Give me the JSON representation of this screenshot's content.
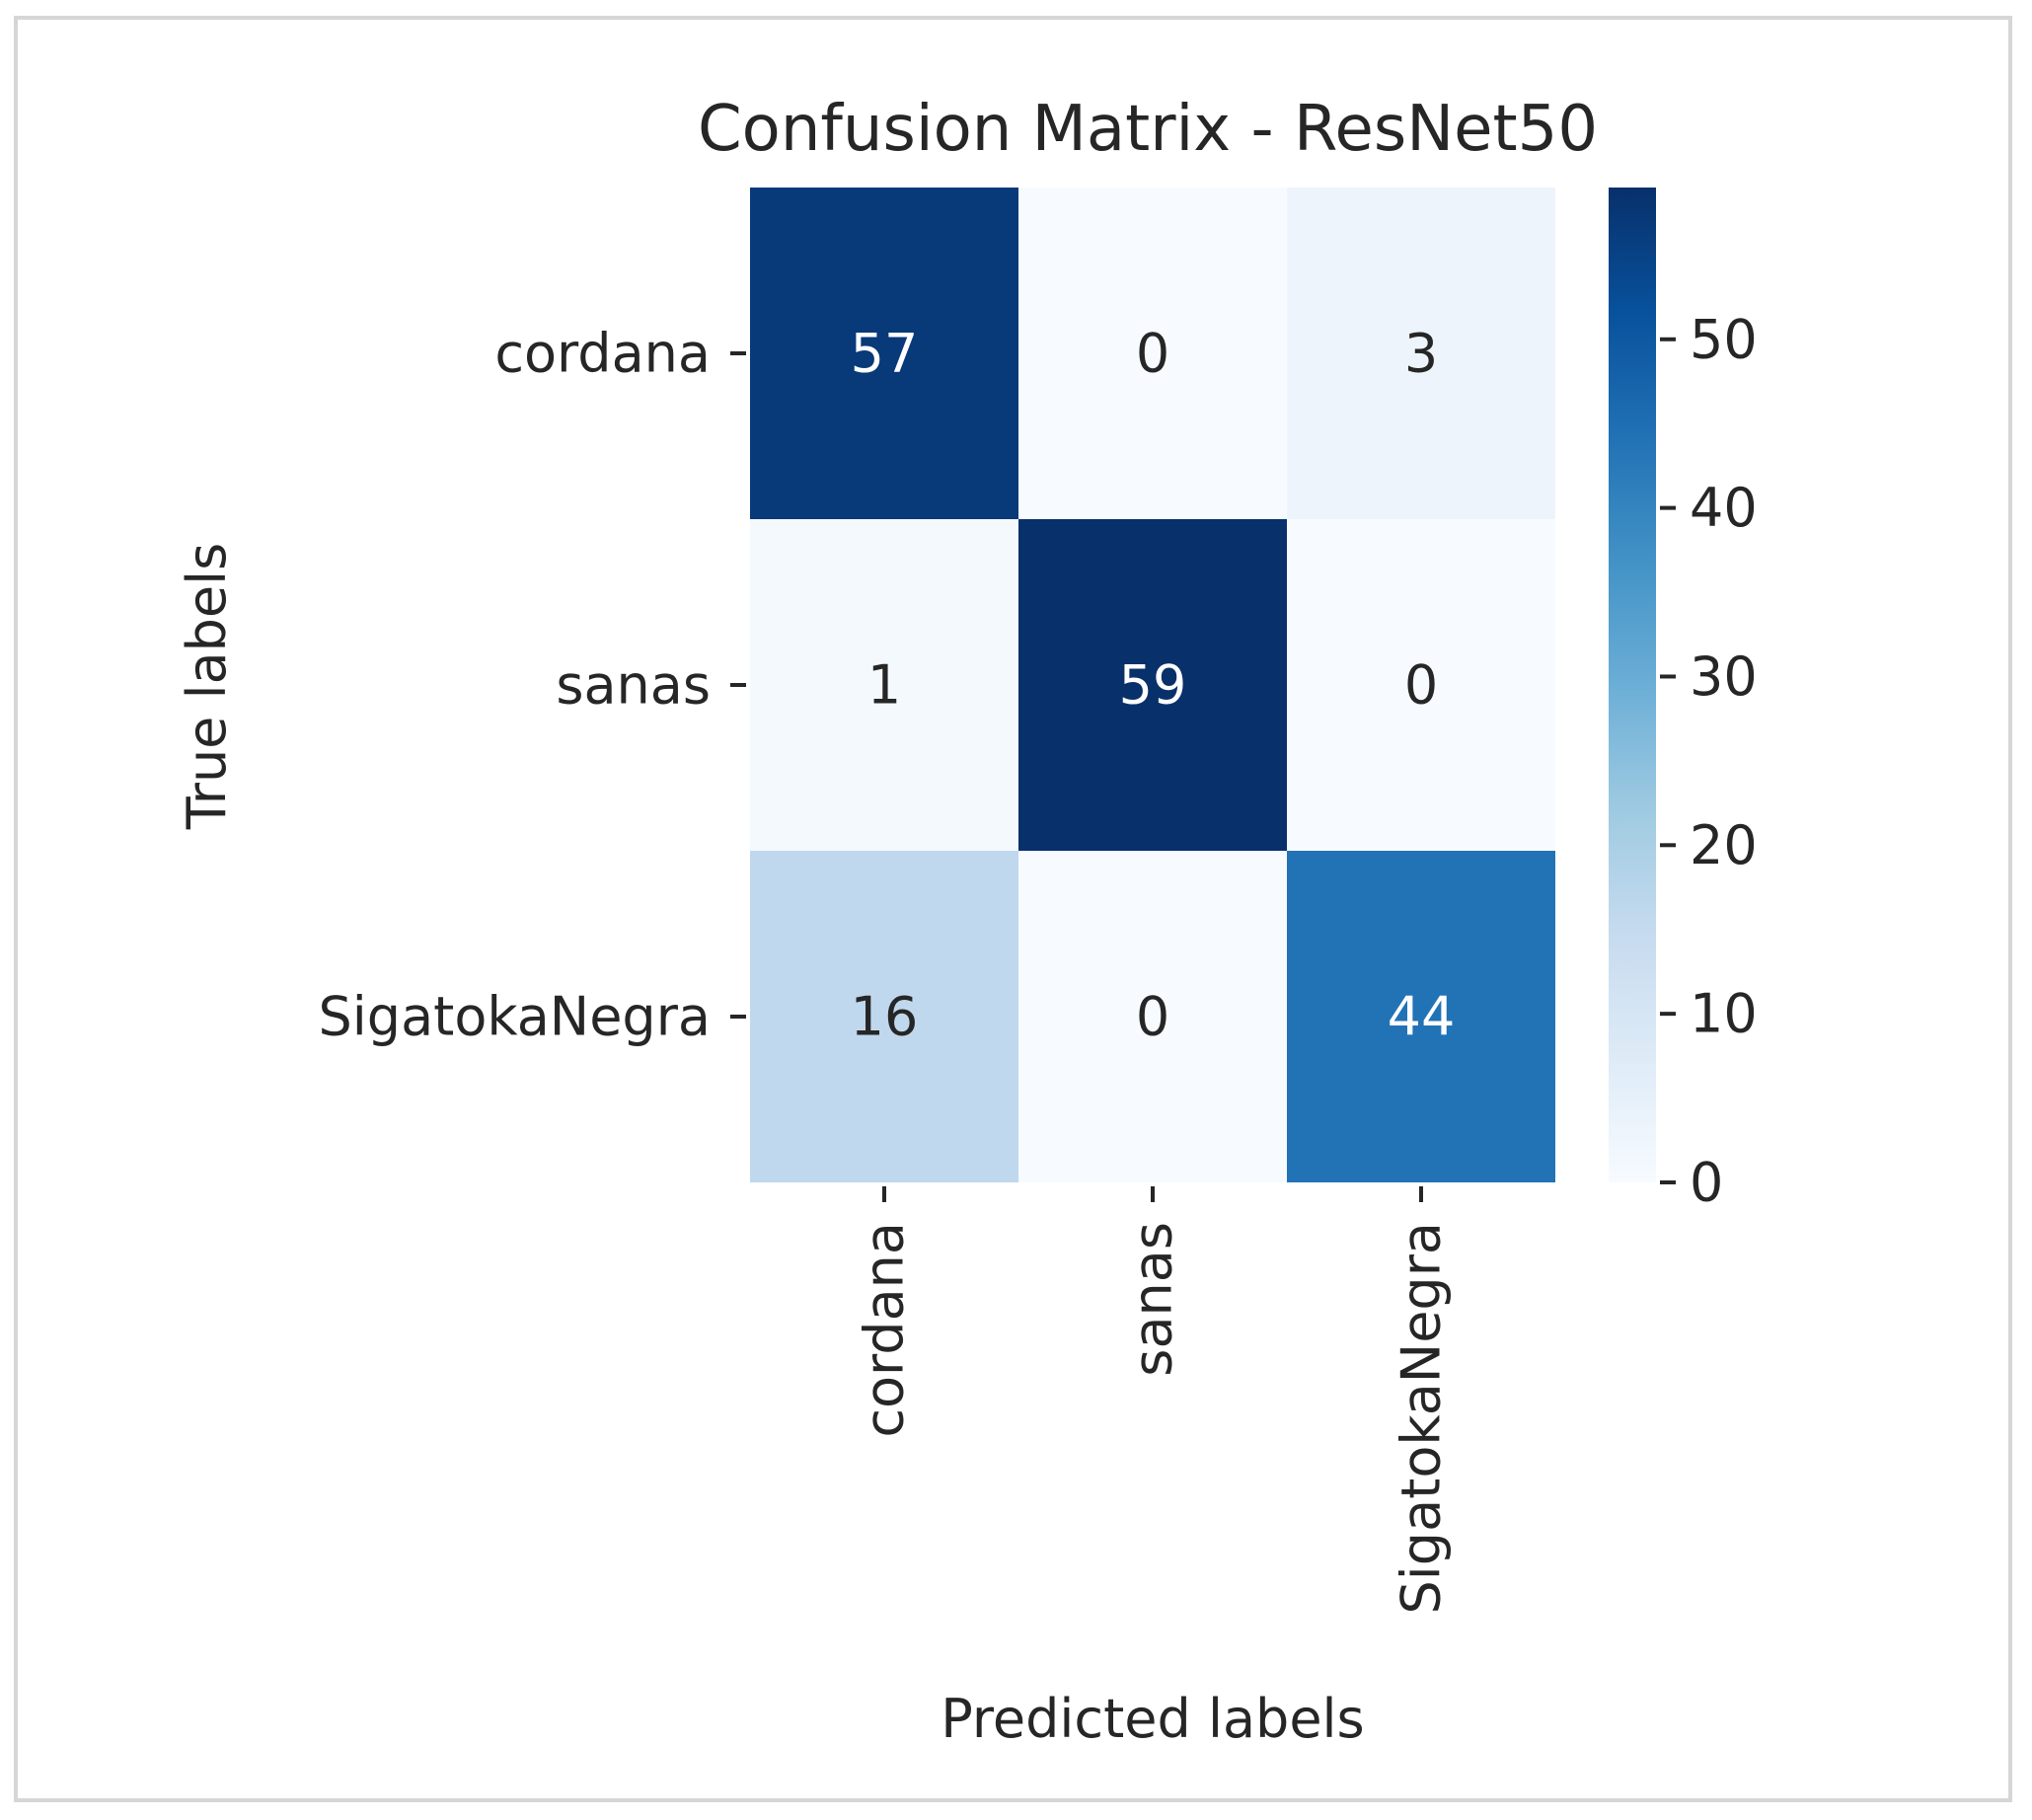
{
  "chart_data": {
    "type": "heatmap",
    "title": "Confusion Matrix - ResNet50",
    "xlabel": "Predicted labels",
    "ylabel": "True labels",
    "x_categories": [
      "cordana",
      "sanas",
      "SigatokaNegra"
    ],
    "y_categories": [
      "cordana",
      "sanas",
      "SigatokaNegra"
    ],
    "values": [
      [
        57,
        0,
        3
      ],
      [
        1,
        59,
        0
      ],
      [
        16,
        0,
        44
      ]
    ],
    "colormap": "Blues",
    "colorbar": {
      "min": 0,
      "max": 59,
      "ticks": [
        0,
        10,
        20,
        30,
        40,
        50
      ]
    },
    "annotated": true
  },
  "colors": {
    "text": "#262626",
    "light_annotation": "#ffffff",
    "frame_border": "#d6d6d6"
  }
}
